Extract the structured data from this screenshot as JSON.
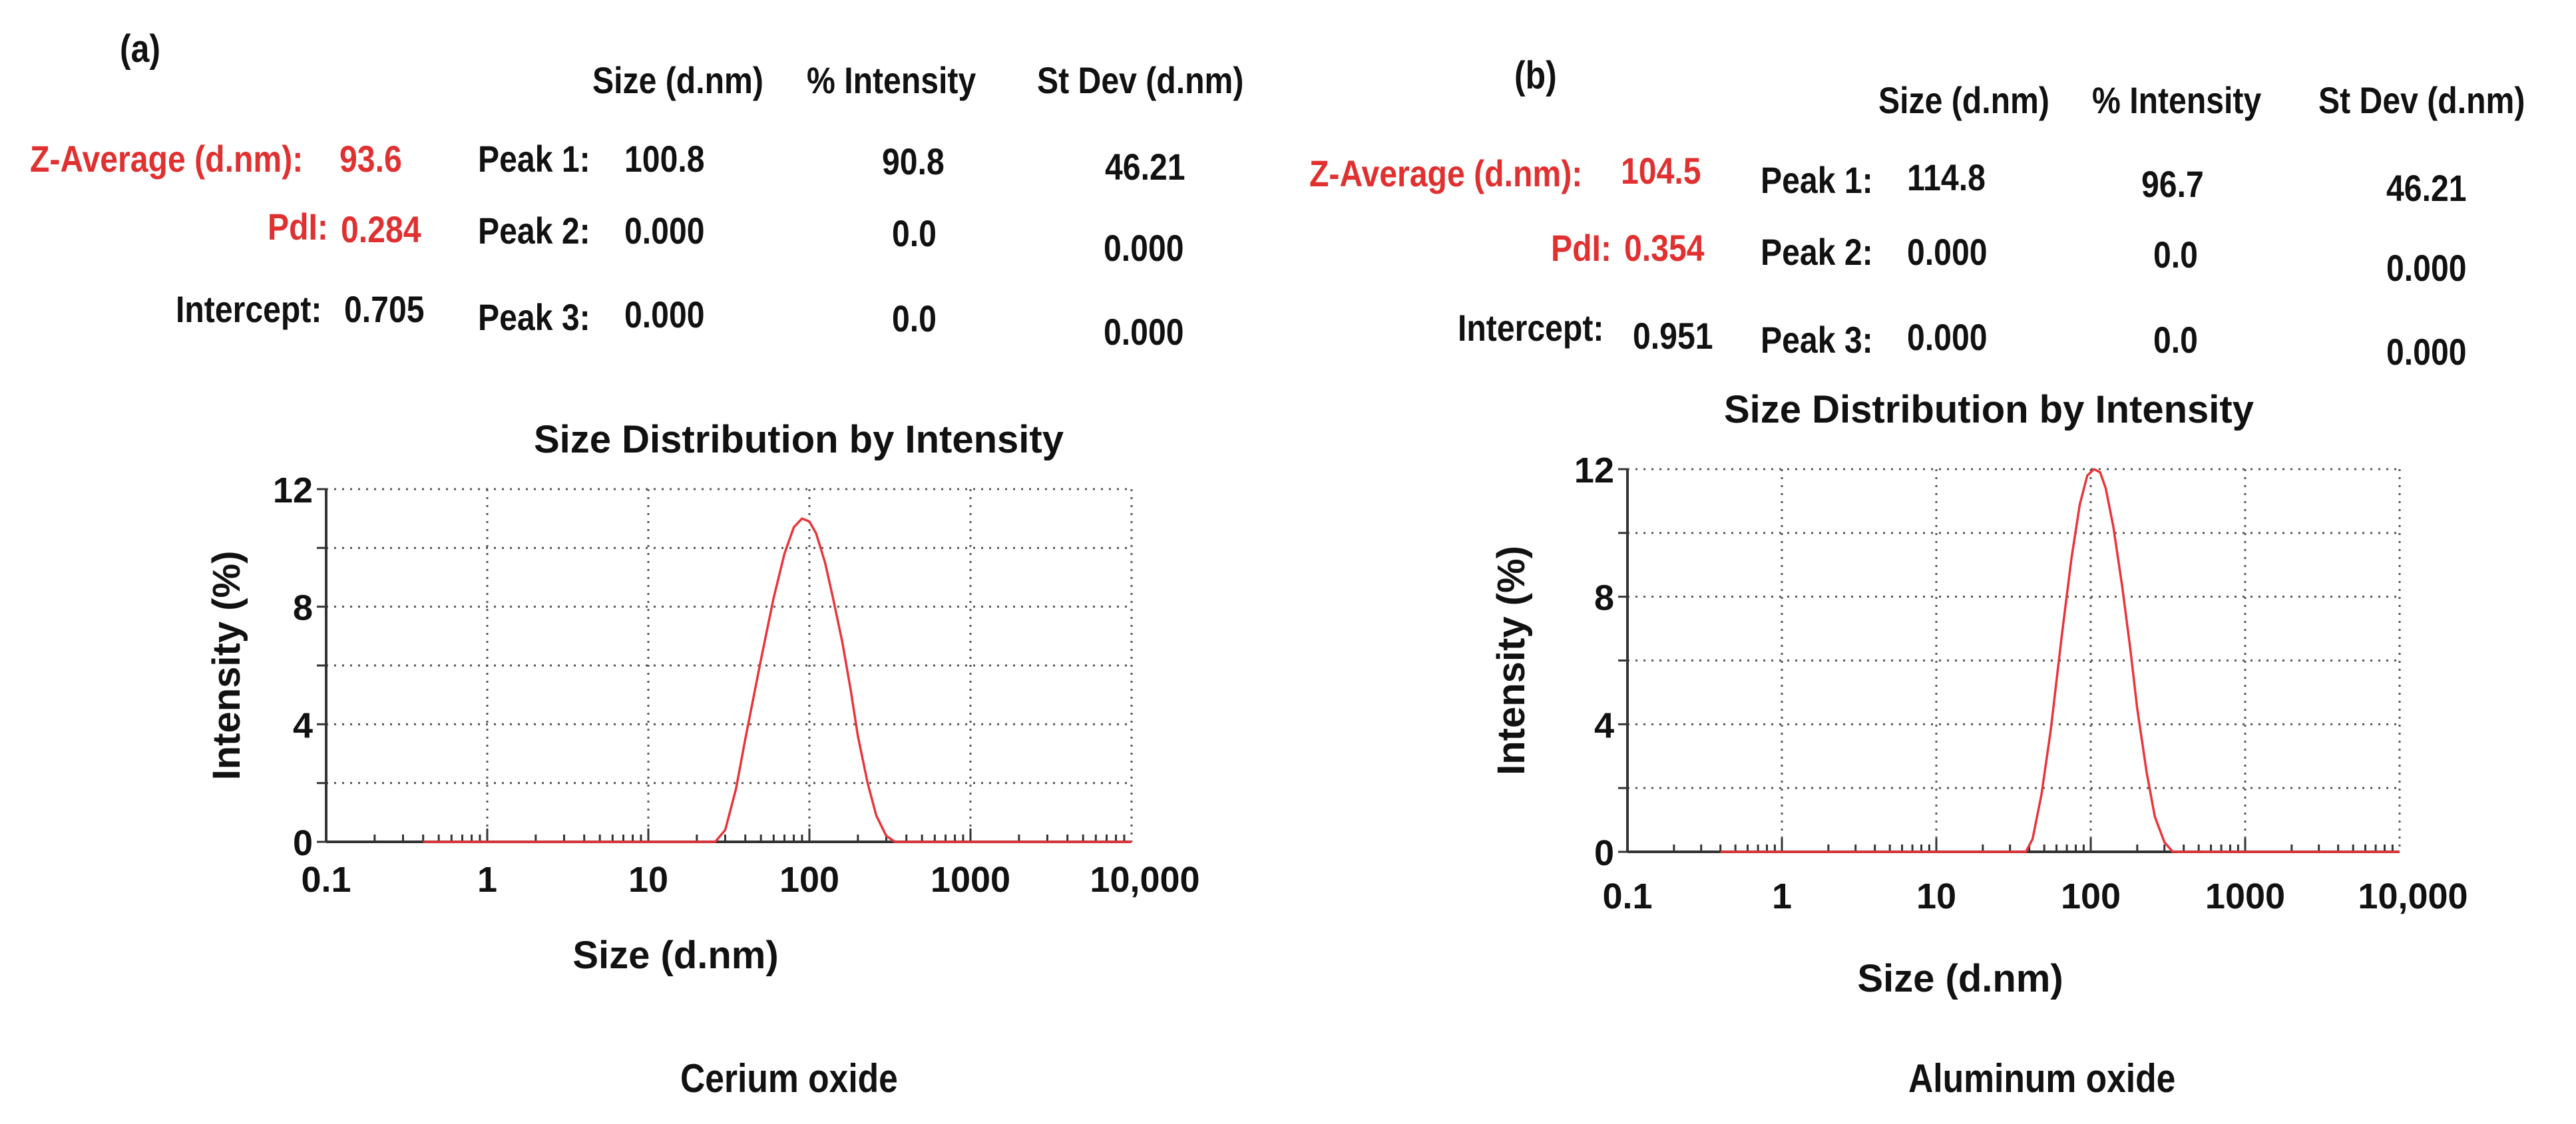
{
  "panels": [
    {
      "label": "(a)",
      "stats": {
        "z_average_label": "Z-Average (d.nm):",
        "z_average_value": "93.6",
        "pdi_label": "PdI:",
        "pdi_value": "0.284",
        "intercept_label": "Intercept:",
        "intercept_value": "0.705"
      },
      "peak_table": {
        "headers": [
          "Size (d.nm)",
          "% Intensity",
          "St Dev (d.nm)"
        ],
        "rows": [
          {
            "label": "Peak 1:",
            "size": "100.8",
            "intensity": "90.8",
            "stdev": "46.21"
          },
          {
            "label": "Peak 2:",
            "size": "0.000",
            "intensity": "0.0",
            "stdev": "0.000"
          },
          {
            "label": "Peak 3:",
            "size": "0.000",
            "intensity": "0.0",
            "stdev": "0.000"
          }
        ]
      },
      "caption": "Cerium oxide"
    },
    {
      "label": "(b)",
      "stats": {
        "z_average_label": "Z-Average (d.nm):",
        "z_average_value": "104.5",
        "pdi_label": "PdI:",
        "pdi_value": "0.354",
        "intercept_label": "Intercept:",
        "intercept_value": "0.951"
      },
      "peak_table": {
        "headers": [
          "Size (d.nm)",
          "% Intensity",
          "St Dev (d.nm)"
        ],
        "rows": [
          {
            "label": "Peak 1:",
            "size": "114.8",
            "intensity": "96.7",
            "stdev": "46.21"
          },
          {
            "label": "Peak 2:",
            "size": "0.000",
            "intensity": "0.0",
            "stdev": "0.000"
          },
          {
            "label": "Peak 3:",
            "size": "0.000",
            "intensity": "0.0",
            "stdev": "0.000"
          }
        ]
      },
      "caption": "Aluminum oxide"
    }
  ],
  "chart_data": [
    {
      "type": "line",
      "title": "Size Distribution by Intensity",
      "xlabel": "Size (d.nm)",
      "ylabel": "Intensity (%)",
      "xscale": "log",
      "xlim": [
        0.1,
        10000
      ],
      "ylim": [
        0,
        12
      ],
      "xticks": [
        0.1,
        1,
        10,
        100,
        1000,
        10000
      ],
      "xtick_labels": [
        "0.1",
        "1",
        "10",
        "100",
        "1000",
        "10,000"
      ],
      "yticks": [
        0,
        4,
        8,
        12
      ],
      "ytick_labels": [
        "0",
        "4",
        "8",
        "12"
      ],
      "grid": true,
      "line_color": "#e8353a",
      "series": [
        {
          "name": "Cerium oxide",
          "x": [
            0.4,
            26,
            30,
            35,
            40,
            50,
            60,
            70,
            80,
            90,
            100,
            110,
            125,
            140,
            160,
            180,
            200,
            230,
            260,
            300,
            340,
            10000
          ],
          "y": [
            0,
            0,
            0.4,
            1.8,
            3.5,
            6.2,
            8.3,
            9.8,
            10.7,
            11.0,
            10.9,
            10.5,
            9.5,
            8.3,
            6.8,
            5.2,
            3.6,
            2.0,
            0.9,
            0.2,
            0,
            0
          ]
        }
      ]
    },
    {
      "type": "line",
      "title": "Size Distribution by Intensity",
      "xlabel": "Size (d.nm)",
      "ylabel": "Intensity (%)",
      "xscale": "log",
      "xlim": [
        0.1,
        10000
      ],
      "ylim": [
        0,
        12
      ],
      "xticks": [
        0.1,
        1,
        10,
        100,
        1000,
        10000
      ],
      "xtick_labels": [
        "0.1",
        "1",
        "10",
        "100",
        "1000",
        "10,000"
      ],
      "yticks": [
        0,
        4,
        8,
        12
      ],
      "ytick_labels": [
        "0",
        "4",
        "8",
        "12"
      ],
      "grid": true,
      "line_color": "#e8353a",
      "series": [
        {
          "name": "Aluminum oxide",
          "x": [
            0.4,
            38,
            42,
            48,
            55,
            65,
            75,
            85,
            95,
            105,
            115,
            125,
            140,
            160,
            180,
            200,
            230,
            260,
            300,
            340,
            2000,
            10000
          ],
          "y": [
            0,
            0,
            0.4,
            1.8,
            3.8,
            6.8,
            9.2,
            10.9,
            11.8,
            12.0,
            11.9,
            11.4,
            10.2,
            8.3,
            6.4,
            4.5,
            2.5,
            1.1,
            0.3,
            0,
            0,
            0
          ]
        }
      ]
    }
  ]
}
